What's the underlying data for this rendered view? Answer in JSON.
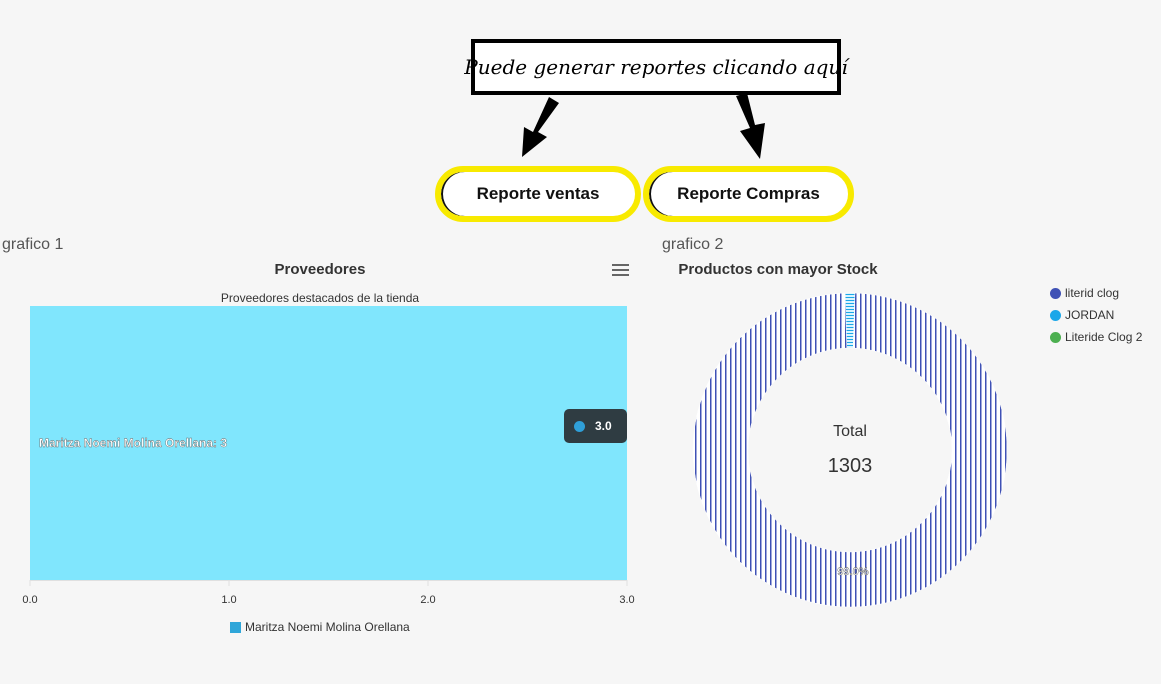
{
  "callout": {
    "text": "Puede generar reportes clicando aquí"
  },
  "buttons": {
    "ventas": "Reporte ventas",
    "compras": "Reporte Compras"
  },
  "panel1": {
    "label": "grafico 1",
    "title": "Proveedores",
    "subtitle": "Proveedores destacados de la tienda",
    "menu_icon": "hamburger-menu-icon",
    "tooltip_value": "3.0",
    "bar_label": "Maritza Noemi Molina Orellana: 3",
    "legend": "Maritza Noemi Molina Orellana"
  },
  "panel2": {
    "label": "grafico 2",
    "title": "Productos con mayor Stock",
    "total_label": "Total",
    "total_value": "1303",
    "slice_label": "99.0%",
    "legend": [
      "literid clog",
      "JORDAN",
      "Literide Clog 2"
    ]
  },
  "colors": {
    "bar": "#80e6fd",
    "bar_legend": "#2fa6d9",
    "donut_1": "#3f51b5",
    "donut_2": "#1ba7e9",
    "donut_3": "#4caf50",
    "highlight": "#f8ea00"
  },
  "chart_data": [
    {
      "type": "bar",
      "orientation": "horizontal",
      "title": "Proveedores",
      "subtitle": "Proveedores destacados de la tienda",
      "categories": [
        "Maritza Noemi Molina Orellana"
      ],
      "series": [
        {
          "name": "Maritza Noemi Molina Orellana",
          "values": [
            3
          ]
        }
      ],
      "xlim": [
        0,
        3
      ],
      "xticks": [
        "0.0",
        "1.0",
        "2.0",
        "3.0"
      ],
      "legend": "bottom"
    },
    {
      "type": "pie",
      "title": "Productos con mayor Stock",
      "categories": [
        "literid clog",
        "JORDAN",
        "Literide Clog 2"
      ],
      "percentages": [
        99.0,
        1.0,
        0
      ],
      "total": 1303,
      "legend": "top-right"
    }
  ]
}
